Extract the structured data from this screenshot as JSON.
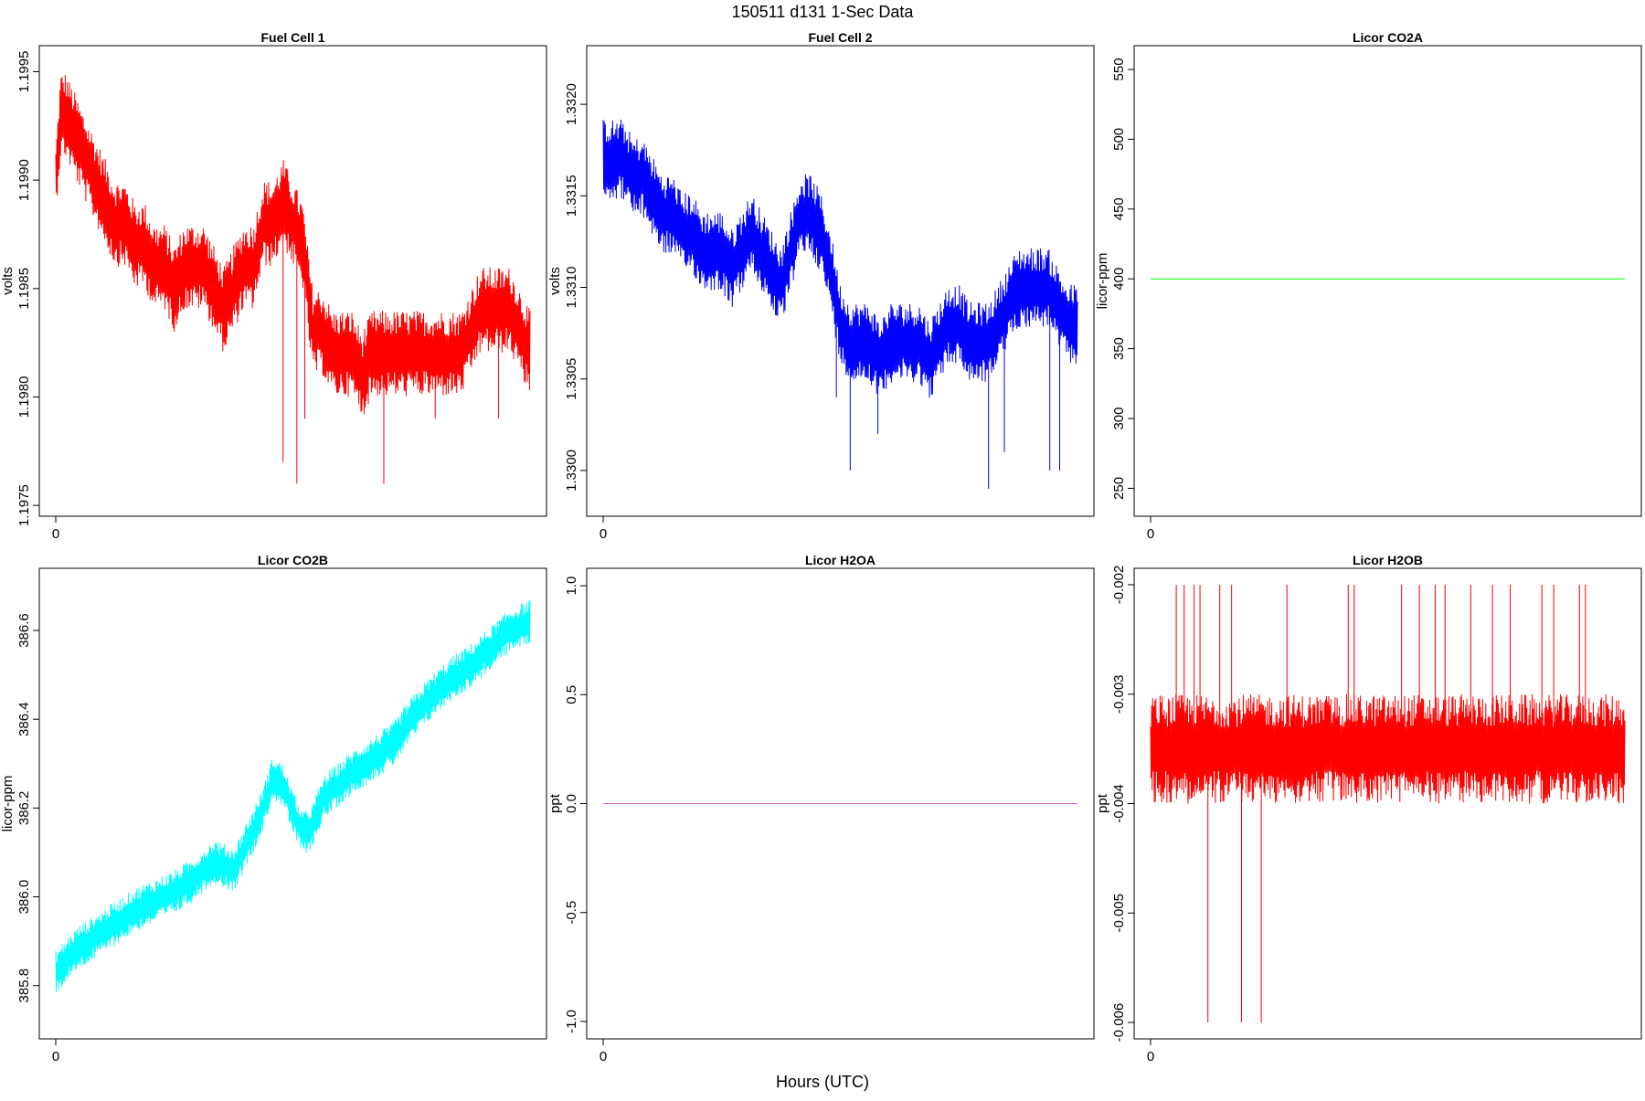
{
  "figure": {
    "title": "150511   d131   1-Sec Data",
    "xlabel": "Hours (UTC)"
  },
  "chart_data": [
    {
      "type": "line",
      "title": "Fuel Cell 1",
      "ylabel": "volts",
      "color": "#ff0000",
      "xlim": [
        0,
        24
      ],
      "ylim": [
        1.19745,
        1.19962
      ],
      "x_ticks": [
        0
      ],
      "y_ticks": [
        1.1975,
        1.198,
        1.1985,
        1.199,
        1.1995
      ],
      "y_tick_labels": [
        "1.1975",
        "1.1980",
        "1.1985",
        "1.1990",
        "1.1995"
      ],
      "series": [
        {
          "x": [
            0,
            0.25,
            0.5,
            1,
            1.5,
            2,
            2.5,
            3,
            3.5,
            4,
            4.5,
            5,
            5.5,
            6,
            6.5,
            7,
            7.5,
            8,
            8.5,
            9,
            9.5,
            10,
            10.5,
            11,
            11.5,
            12,
            12.5,
            13,
            13.5,
            14,
            14.5,
            15,
            15.5,
            16,
            16.5,
            17,
            17.5,
            18,
            18.5,
            19,
            19.5,
            20,
            20.5,
            21,
            21.5,
            22,
            22.5,
            23,
            23.5,
            24
          ],
          "y": [
            1.199,
            1.1993,
            1.1993,
            1.1992,
            1.1991,
            1.199,
            1.1989,
            1.1988,
            1.1988,
            1.1987,
            1.1987,
            1.1986,
            1.1986,
            1.1985,
            1.1986,
            1.1986,
            1.1986,
            1.1985,
            1.1984,
            1.1985,
            1.1986,
            1.1986,
            1.1988,
            1.1988,
            1.1989,
            1.1988,
            1.1987,
            1.1983,
            1.1983,
            1.1982,
            1.1982,
            1.1982,
            1.1981,
            1.1982,
            1.1982,
            1.1982,
            1.1982,
            1.1982,
            1.1982,
            1.1982,
            1.1982,
            1.1982,
            1.1982,
            1.1983,
            1.1984,
            1.1984,
            1.1984,
            1.1984,
            1.1983,
            1.1982
          ],
          "amp": [
            0.00015,
            0.0002,
            0.0002,
            0.0002,
            0.0002,
            0.0002,
            0.0002,
            0.0002,
            0.0002,
            0.0002,
            0.0002,
            0.0002,
            0.0002,
            0.0002,
            0.0002,
            0.0002,
            0.0002,
            0.0002,
            0.0002,
            0.0002,
            0.0002,
            0.0002,
            0.0002,
            0.0002,
            0.0002,
            0.0002,
            0.0002,
            0.0002,
            0.0002,
            0.0002,
            0.0002,
            0.0002,
            0.0002,
            0.0002,
            0.0002,
            0.0002,
            0.0002,
            0.0002,
            0.0002,
            0.0002,
            0.0002,
            0.0002,
            0.0002,
            0.0002,
            0.0002,
            0.0002,
            0.0002,
            0.0002,
            0.0002,
            0.0002
          ],
          "spikes": [
            [
              11.5,
              1.1977
            ],
            [
              12.2,
              1.1976
            ],
            [
              12.6,
              1.1979
            ],
            [
              16.6,
              1.1976
            ],
            [
              19.2,
              1.1979
            ],
            [
              22.4,
              1.1979
            ]
          ]
        }
      ]
    },
    {
      "type": "line",
      "title": "Fuel Cell 2",
      "ylabel": "volts",
      "color": "#0000ff",
      "xlim": [
        0,
        24
      ],
      "ylim": [
        1.32975,
        1.33232
      ],
      "x_ticks": [
        0
      ],
      "y_ticks": [
        1.33,
        1.3305,
        1.331,
        1.3315,
        1.332
      ],
      "y_tick_labels": [
        "1.3300",
        "1.3305",
        "1.3310",
        "1.3315",
        "1.3320"
      ],
      "series": [
        {
          "x": [
            0,
            0.5,
            1,
            1.5,
            2,
            2.5,
            3,
            3.5,
            4,
            4.5,
            5,
            5.5,
            6,
            6.5,
            7,
            7.5,
            8,
            8.5,
            9,
            9.5,
            10,
            10.5,
            11,
            11.5,
            12,
            12.5,
            13,
            13.5,
            14,
            14.5,
            15,
            15.5,
            16,
            16.5,
            17,
            17.5,
            18,
            18.5,
            19,
            19.5,
            20,
            20.5,
            21,
            21.5,
            22,
            22.5,
            23,
            23.5,
            24
          ],
          "y": [
            1.3317,
            1.3317,
            1.3317,
            1.3316,
            1.3316,
            1.3315,
            1.3314,
            1.3314,
            1.3313,
            1.3313,
            1.3312,
            1.3312,
            1.3312,
            1.3311,
            1.3312,
            1.3313,
            1.3312,
            1.3311,
            1.331,
            1.3312,
            1.3314,
            1.3314,
            1.3313,
            1.3311,
            1.3308,
            1.3307,
            1.3307,
            1.3307,
            1.3306,
            1.3307,
            1.3307,
            1.3307,
            1.3307,
            1.3306,
            1.3307,
            1.3308,
            1.3308,
            1.3307,
            1.3307,
            1.3307,
            1.3308,
            1.3309,
            1.331,
            1.331,
            1.331,
            1.331,
            1.3309,
            1.3308,
            1.3308
          ],
          "amp": [
            0.00022,
            0.00022,
            0.00022,
            0.00022,
            0.00022,
            0.00022,
            0.00022,
            0.00022,
            0.00022,
            0.00022,
            0.00022,
            0.00022,
            0.00022,
            0.00022,
            0.00022,
            0.00022,
            0.00022,
            0.00022,
            0.00022,
            0.00022,
            0.00022,
            0.00022,
            0.00022,
            0.00022,
            0.00022,
            0.00022,
            0.00022,
            0.00022,
            0.00022,
            0.00022,
            0.00022,
            0.00022,
            0.00022,
            0.00022,
            0.00022,
            0.00022,
            0.00022,
            0.00022,
            0.00022,
            0.00022,
            0.00022,
            0.00022,
            0.00022,
            0.00022,
            0.00022,
            0.00022,
            0.00022,
            0.00022,
            0.00022
          ],
          "spikes": [
            [
              11.8,
              1.3304
            ],
            [
              12.5,
              1.33
            ],
            [
              13.9,
              1.3302
            ],
            [
              19.5,
              1.3299
            ],
            [
              20.3,
              1.3301
            ],
            [
              22.6,
              1.33
            ],
            [
              23.1,
              1.33
            ]
          ]
        }
      ]
    },
    {
      "type": "line",
      "title": "Licor CO2A",
      "ylabel": "licor-ppm",
      "color": "#00ff00",
      "xlim": [
        0,
        24
      ],
      "ylim": [
        230,
        567
      ],
      "x_ticks": [
        0
      ],
      "y_ticks": [
        250,
        300,
        350,
        400,
        450,
        500,
        550
      ],
      "y_tick_labels": [
        "250",
        "300",
        "350",
        "400",
        "450",
        "500",
        "550"
      ],
      "series": [
        {
          "x": [
            0,
            24
          ],
          "y": [
            400,
            400
          ],
          "amp": [
            0,
            0
          ],
          "spikes": []
        }
      ]
    },
    {
      "type": "line",
      "title": "Licor CO2B",
      "ylabel": "licor-ppm",
      "color": "#00ffff",
      "xlim": [
        0,
        24
      ],
      "ylim": [
        385.68,
        386.74
      ],
      "x_ticks": [
        0
      ],
      "y_ticks": [
        385.8,
        386.0,
        386.2,
        386.4,
        386.6
      ],
      "y_tick_labels": [
        "385.8",
        "386.0",
        "386.2",
        "386.4",
        "386.6"
      ],
      "series": [
        {
          "x": [
            0,
            1,
            2,
            3,
            4,
            5,
            6,
            7,
            8,
            9,
            10,
            10.5,
            11,
            11.5,
            12,
            12.5,
            13,
            13.5,
            14,
            15,
            16,
            17,
            18,
            19,
            20,
            21,
            22,
            23,
            24
          ],
          "y": [
            385.83,
            385.88,
            385.91,
            385.94,
            385.97,
            385.99,
            386.01,
            386.04,
            386.08,
            386.06,
            386.15,
            386.2,
            386.27,
            386.25,
            386.19,
            386.14,
            386.16,
            386.22,
            386.24,
            386.28,
            386.31,
            386.34,
            386.4,
            386.45,
            386.49,
            386.52,
            386.56,
            386.6,
            386.62
          ],
          "amp": [
            0.05,
            0.05,
            0.05,
            0.05,
            0.05,
            0.05,
            0.05,
            0.05,
            0.05,
            0.05,
            0.05,
            0.05,
            0.05,
            0.05,
            0.05,
            0.05,
            0.05,
            0.05,
            0.05,
            0.05,
            0.05,
            0.05,
            0.05,
            0.05,
            0.05,
            0.05,
            0.05,
            0.05,
            0.05
          ],
          "spikes": []
        }
      ]
    },
    {
      "type": "line",
      "title": "Licor H2OA",
      "ylabel": "ppt",
      "color": "#cc66cc",
      "xlim": [
        0,
        24
      ],
      "ylim": [
        -1.08,
        1.08
      ],
      "x_ticks": [
        0
      ],
      "y_ticks": [
        -1.0,
        -0.5,
        0.0,
        0.5,
        1.0
      ],
      "y_tick_labels": [
        "-1.0",
        "-0.5",
        "0.0",
        "0.5",
        "1.0"
      ],
      "series": [
        {
          "x": [
            0,
            24
          ],
          "y": [
            0,
            0
          ],
          "amp": [
            0,
            0
          ],
          "spikes": []
        }
      ]
    },
    {
      "type": "line",
      "title": "Licor H2OB",
      "ylabel": "ppt",
      "color": "#ff0000",
      "xlim": [
        0,
        24
      ],
      "ylim": [
        -0.00615,
        -0.00185
      ],
      "x_ticks": [
        0
      ],
      "y_ticks": [
        -0.006,
        -0.005,
        -0.004,
        -0.003,
        -0.002
      ],
      "y_tick_labels": [
        "-0.006",
        "-0.005",
        "-0.004",
        "-0.003",
        "-0.002"
      ],
      "series": [
        {
          "x": [
            0,
            24
          ],
          "y": [
            -0.0035,
            -0.0035
          ],
          "amp": [
            0.0005,
            0.0005
          ],
          "spikes": [
            [
              1.3,
              -0.002
            ],
            [
              1.7,
              -0.002
            ],
            [
              2.2,
              -0.002
            ],
            [
              2.5,
              -0.002
            ],
            [
              2.9,
              -0.006
            ],
            [
              3.5,
              -0.002
            ],
            [
              4.1,
              -0.002
            ],
            [
              4.6,
              -0.006
            ],
            [
              5.6,
              -0.006
            ],
            [
              6.9,
              -0.002
            ],
            [
              10.0,
              -0.002
            ],
            [
              10.3,
              -0.002
            ],
            [
              12.7,
              -0.002
            ],
            [
              13.6,
              -0.002
            ],
            [
              14.4,
              -0.002
            ],
            [
              14.9,
              -0.002
            ],
            [
              16.2,
              -0.002
            ],
            [
              17.3,
              -0.002
            ],
            [
              18.2,
              -0.002
            ],
            [
              19.8,
              -0.002
            ],
            [
              20.4,
              -0.002
            ],
            [
              21.7,
              -0.002
            ],
            [
              22.0,
              -0.002
            ]
          ]
        }
      ]
    }
  ]
}
